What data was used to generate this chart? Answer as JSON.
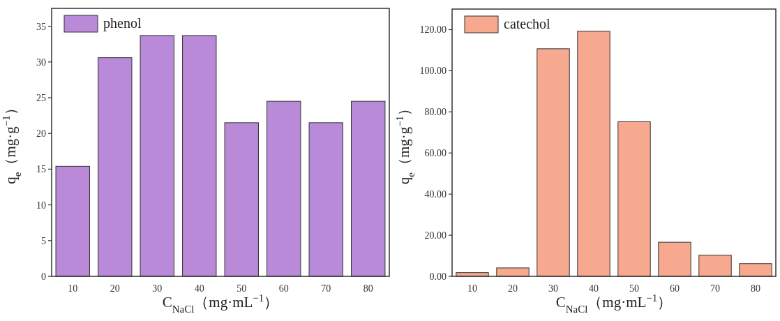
{
  "chart_data": [
    {
      "type": "bar",
      "categories": [
        "10",
        "20",
        "30",
        "40",
        "50",
        "60",
        "70",
        "80"
      ],
      "xlabel": "C$_{NaCl}$（mg·mL$^{−1}$）",
      "ylabel": "q$_{e}$（mg·g$^{−1}$）",
      "ylim": [
        0,
        37.5
      ],
      "yticks": [
        0,
        5,
        10,
        15,
        20,
        25,
        30,
        35
      ],
      "legend": "top left",
      "grid": false,
      "series": [
        {
          "name": "phenol",
          "color": "#b98ad8",
          "values": [
            15.4,
            30.6,
            33.7,
            33.7,
            21.5,
            24.5,
            21.5,
            24.5
          ]
        }
      ]
    },
    {
      "type": "bar",
      "categories": [
        "10",
        "20",
        "30",
        "40",
        "50",
        "60",
        "70",
        "80"
      ],
      "xlabel": "C$_{NaCl}$（mg·mL$^{−1}$）",
      "ylabel": "q$_{e}$（mg·g$^{−1}$）",
      "ylim": [
        0,
        130
      ],
      "yticks": [
        {
          "value": 0,
          "label": "0.00"
        },
        {
          "value": 20,
          "label": "20.00"
        },
        {
          "value": 40,
          "label": "40.00"
        },
        {
          "value": 60,
          "label": "60.00"
        },
        {
          "value": 80,
          "label": "80.00"
        },
        {
          "value": 100,
          "label": "100.00"
        },
        {
          "value": 120,
          "label": "120.00"
        }
      ],
      "legend": "top left",
      "grid": false,
      "series": [
        {
          "name": "catechol",
          "color": "#f7a98f",
          "values": [
            1.8,
            4.1,
            110.7,
            119.2,
            75.2,
            16.6,
            10.3,
            6.2
          ]
        }
      ]
    }
  ]
}
